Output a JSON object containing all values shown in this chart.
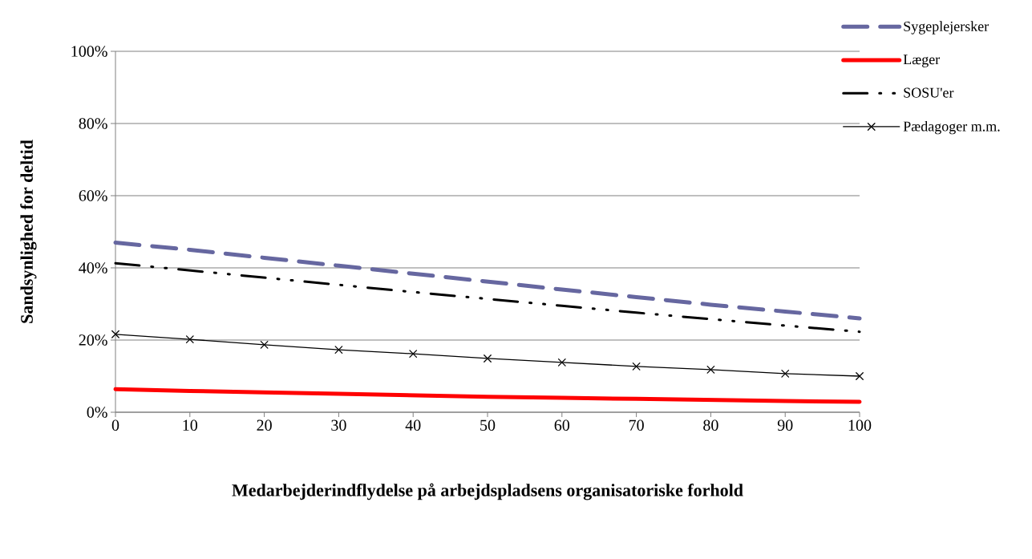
{
  "chart_data": {
    "type": "line",
    "xlabel": "Medarbejderindflydelse på arbejdspladsens organisatoriske forhold",
    "ylabel": "Sandsynlighed for deltid",
    "x": [
      0,
      10,
      20,
      30,
      40,
      50,
      60,
      70,
      80,
      90,
      100
    ],
    "xlim": [
      0,
      100
    ],
    "xticks": [
      0,
      10,
      20,
      30,
      40,
      50,
      60,
      70,
      80,
      90,
      100
    ],
    "ylim": [
      0,
      100
    ],
    "yticks": [
      {
        "value": 0,
        "label": "0%"
      },
      {
        "value": 20,
        "label": "20%"
      },
      {
        "value": 40,
        "label": "40%"
      },
      {
        "value": 60,
        "label": "60%"
      },
      {
        "value": 80,
        "label": "80%"
      },
      {
        "value": 100,
        "label": "100%"
      }
    ],
    "grid": "y",
    "legend": "top right",
    "series": [
      {
        "name": "Sygeplejersker",
        "color": "#6667a0",
        "line_style": "dashed",
        "marker": "none",
        "values": [
          47,
          45,
          42.8,
          40.6,
          38.4,
          36.2,
          34,
          31.9,
          29.8,
          27.9,
          26
        ]
      },
      {
        "name": "Læger",
        "color": "#ff0000",
        "line_style": "solid",
        "marker": "none",
        "values": [
          6.4,
          5.9,
          5.5,
          5.1,
          4.7,
          4.3,
          4.0,
          3.7,
          3.4,
          3.1,
          2.9
        ]
      },
      {
        "name": "SOSU'er",
        "color": "#000000",
        "line_style": "dashdotdotted",
        "marker": "none",
        "values": [
          41.3,
          39.3,
          37.3,
          35.3,
          33.3,
          31.4,
          29.5,
          27.6,
          25.8,
          24,
          22.3
        ]
      },
      {
        "name": "Pædagoger m.m.",
        "color": "#000000",
        "line_style": "solid",
        "marker": "cross",
        "values": [
          21.6,
          20.2,
          18.7,
          17.3,
          16.2,
          14.9,
          13.8,
          12.7,
          11.8,
          10.7,
          10
        ]
      }
    ]
  }
}
